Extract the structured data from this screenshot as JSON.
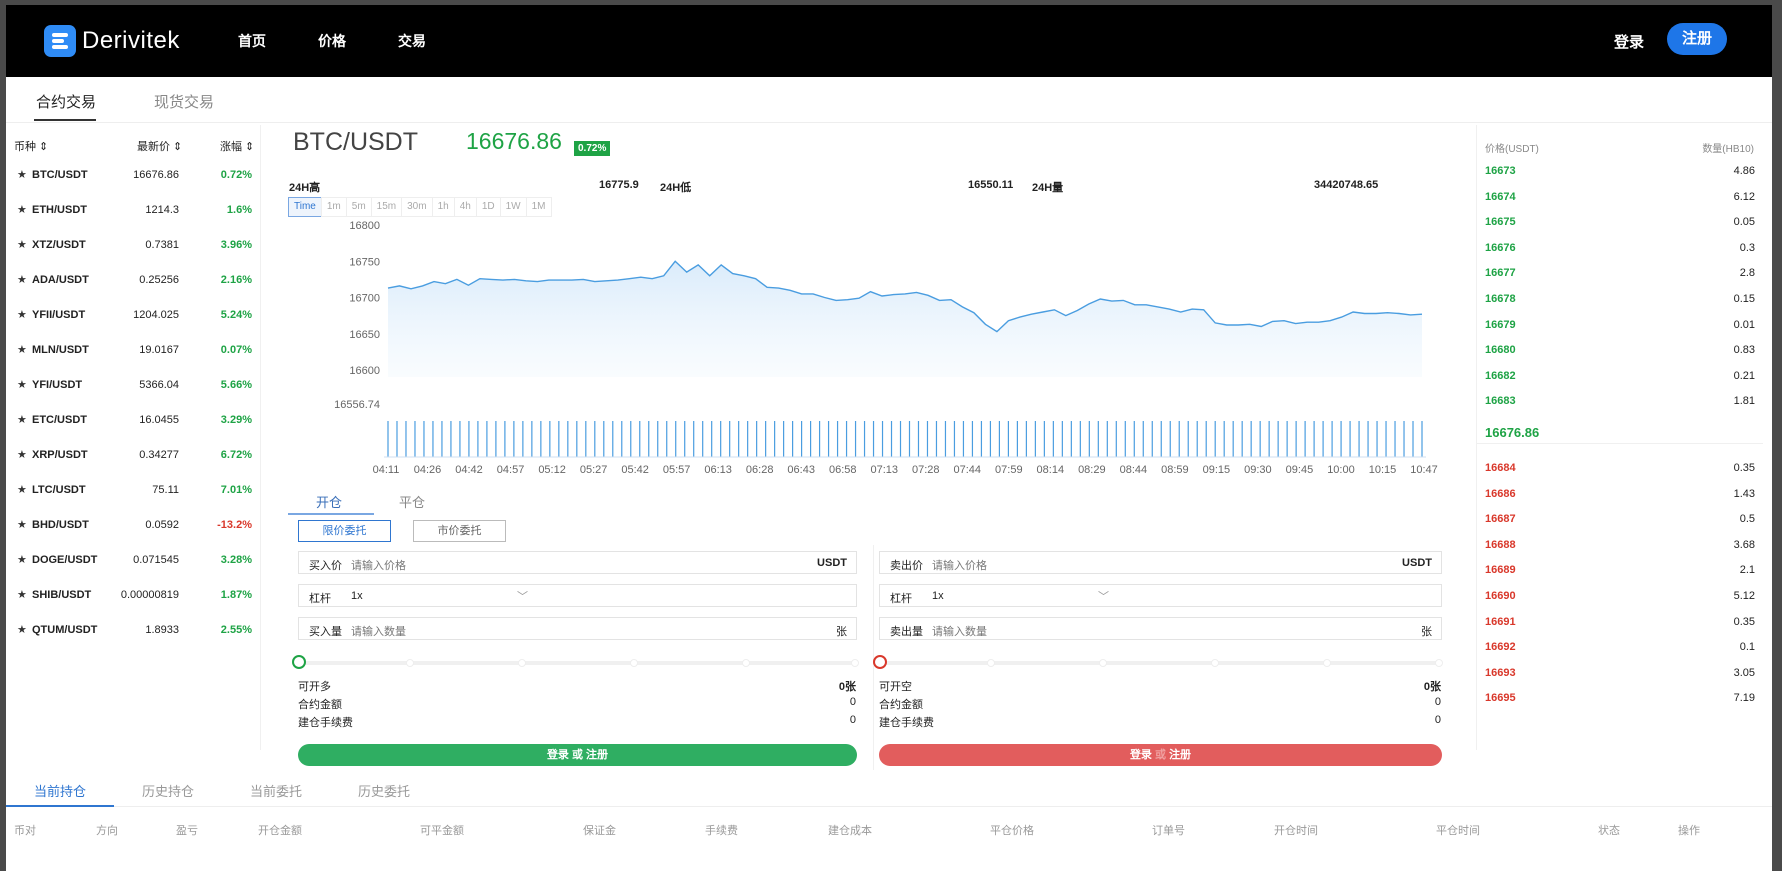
{
  "header": {
    "brand": "Derivitek",
    "nav": [
      "首页",
      "价格",
      "交易"
    ],
    "login": "登录",
    "register": "注册"
  },
  "mode_tabs": [
    "合约交易",
    "现货交易"
  ],
  "coin_list": {
    "headers": {
      "coin": "币种 ⇕",
      "price": "最新价 ⇕",
      "change": "涨幅 ⇕"
    },
    "rows": [
      {
        "symbol": "BTC/USDT",
        "price": "16676.86",
        "change": "0.72%",
        "up": true
      },
      {
        "symbol": "ETH/USDT",
        "price": "1214.3",
        "change": "1.6%",
        "up": true
      },
      {
        "symbol": "XTZ/USDT",
        "price": "0.7381",
        "change": "3.96%",
        "up": true
      },
      {
        "symbol": "ADA/USDT",
        "price": "0.25256",
        "change": "2.16%",
        "up": true
      },
      {
        "symbol": "YFII/USDT",
        "price": "1204.025",
        "change": "5.24%",
        "up": true
      },
      {
        "symbol": "MLN/USDT",
        "price": "19.0167",
        "change": "0.07%",
        "up": true
      },
      {
        "symbol": "YFI/USDT",
        "price": "5366.04",
        "change": "5.66%",
        "up": true
      },
      {
        "symbol": "ETC/USDT",
        "price": "16.0455",
        "change": "3.29%",
        "up": true
      },
      {
        "symbol": "XRP/USDT",
        "price": "0.34277",
        "change": "6.72%",
        "up": true
      },
      {
        "symbol": "LTC/USDT",
        "price": "75.11",
        "change": "7.01%",
        "up": true
      },
      {
        "symbol": "BHD/USDT",
        "price": "0.0592",
        "change": "-13.2%",
        "up": false
      },
      {
        "symbol": "DOGE/USDT",
        "price": "0.071545",
        "change": "3.28%",
        "up": true
      },
      {
        "symbol": "SHIB/USDT",
        "price": "0.00000819",
        "change": "1.87%",
        "up": true
      },
      {
        "symbol": "QTUM/USDT",
        "price": "1.8933",
        "change": "2.55%",
        "up": true
      }
    ]
  },
  "market": {
    "pair": "BTC/USDT",
    "last_price": "16676.86",
    "change_pct": "0.72%",
    "high_label": "24H高",
    "high": "16775.9",
    "low_label": "24H低",
    "low": "16550.11",
    "vol_label": "24H量",
    "volume": "34420748.65",
    "intervals": [
      "Time",
      "1m",
      "5m",
      "15m",
      "30m",
      "1h",
      "4h",
      "1D",
      "1W",
      "1M"
    ],
    "active_interval": "Time"
  },
  "chart_data": {
    "type": "line",
    "x_ticks": [
      "04:11",
      "04:26",
      "04:42",
      "04:57",
      "05:12",
      "05:27",
      "05:42",
      "05:57",
      "06:13",
      "06:28",
      "06:43",
      "06:58",
      "07:13",
      "07:28",
      "07:44",
      "07:59",
      "08:14",
      "08:29",
      "08:44",
      "08:59",
      "09:15",
      "09:30",
      "09:45",
      "10:00",
      "10:15",
      "10:47"
    ],
    "y_ticks": [
      "16800",
      "16750",
      "16700",
      "16650",
      "16600",
      "16556.74"
    ],
    "ylim": [
      16556.74,
      16800
    ],
    "series": [
      {
        "values": [
          16713,
          16716,
          16712,
          16716,
          16722,
          16719,
          16725,
          16717,
          16726,
          16725,
          16724,
          16725,
          16723,
          16722,
          16724,
          16724,
          16724,
          16725,
          16722,
          16723,
          16724,
          16726,
          16728,
          16726,
          16730,
          16750,
          16735,
          16745,
          16730,
          16745,
          16733,
          16730,
          16726,
          16714,
          16713,
          16710,
          16705,
          16705,
          16700,
          16696,
          16697,
          16699,
          16708,
          16702,
          16704,
          16705,
          16707,
          16703,
          16696,
          16697,
          16687,
          16679,
          16663,
          16653,
          16668,
          16673,
          16677,
          16680,
          16683,
          16675,
          16682,
          16691,
          16698,
          16695,
          16696,
          16690,
          16690,
          16687,
          16684,
          16680,
          16684,
          16683,
          16665,
          16662,
          16662,
          16663,
          16660,
          16667,
          16668,
          16664,
          16666,
          16666,
          16668,
          16673,
          16680,
          16678,
          16678,
          16679,
          16678,
          16676,
          16677
        ]
      }
    ]
  },
  "form": {
    "tabs": [
      "开仓",
      "平仓"
    ],
    "types": [
      "限价委托",
      "市价委托"
    ],
    "buy": {
      "price_label": "买入价",
      "price_ph": "请输入价格",
      "unit": "USDT",
      "lev_label": "杠杆",
      "lev_value": "1x",
      "qty_label": "买入量",
      "qty_ph": "请输入数量",
      "qty_unit": "张",
      "avail_label": "可开多",
      "avail_value": "0张",
      "amount_label": "合约金额",
      "amount_value": "0",
      "fee_label": "建仓手续费",
      "fee_value": "0",
      "button": "登录 或 注册"
    },
    "sell": {
      "price_label": "卖出价",
      "price_ph": "请输入价格",
      "unit": "USDT",
      "lev_label": "杠杆",
      "lev_value": "1x",
      "qty_label": "卖出量",
      "qty_ph": "请输入数量",
      "qty_unit": "张",
      "avail_label": "可开空",
      "avail_value": "0张",
      "amount_label": "合约金额",
      "amount_value": "0",
      "fee_label": "建仓手续费",
      "fee_value": "0",
      "button_a": "登录",
      "button_or": "或",
      "button_b": "注册"
    }
  },
  "orderbook": {
    "price_header": "价格(USDT)",
    "qty_header": "数量(HB10)",
    "bids": [
      {
        "price": "16673",
        "qty": "4.86"
      },
      {
        "price": "16674",
        "qty": "6.12"
      },
      {
        "price": "16675",
        "qty": "0.05"
      },
      {
        "price": "16676",
        "qty": "0.3"
      },
      {
        "price": "16677",
        "qty": "2.8"
      },
      {
        "price": "16678",
        "qty": "0.15"
      },
      {
        "price": "16679",
        "qty": "0.01"
      },
      {
        "price": "16680",
        "qty": "0.83"
      },
      {
        "price": "16682",
        "qty": "0.21"
      },
      {
        "price": "16683",
        "qty": "1.81"
      }
    ],
    "mid": "16676.86",
    "asks": [
      {
        "price": "16684",
        "qty": "0.35"
      },
      {
        "price": "16686",
        "qty": "1.43"
      },
      {
        "price": "16687",
        "qty": "0.5"
      },
      {
        "price": "16688",
        "qty": "3.68"
      },
      {
        "price": "16689",
        "qty": "2.1"
      },
      {
        "price": "16690",
        "qty": "5.12"
      },
      {
        "price": "16691",
        "qty": "0.35"
      },
      {
        "price": "16692",
        "qty": "0.1"
      },
      {
        "price": "16693",
        "qty": "3.05"
      },
      {
        "price": "16695",
        "qty": "7.19"
      }
    ]
  },
  "bottom": {
    "tabs": [
      "当前持仓",
      "历史持仓",
      "当前委托",
      "历史委托"
    ],
    "columns": [
      "币对",
      "方向",
      "盈亏",
      "开仓金额",
      "可平金额",
      "保证金",
      "手续费",
      "建仓成本",
      "平仓价格",
      "订单号",
      "开仓时间",
      "平仓时间",
      "状态",
      "操作"
    ]
  },
  "colors": {
    "up": "#1ea345",
    "down": "#d9382b",
    "accent": "#1e76e8",
    "buy_button": "#2fae62",
    "sell_button": "#e25d5d",
    "line": "#4a9de0"
  }
}
